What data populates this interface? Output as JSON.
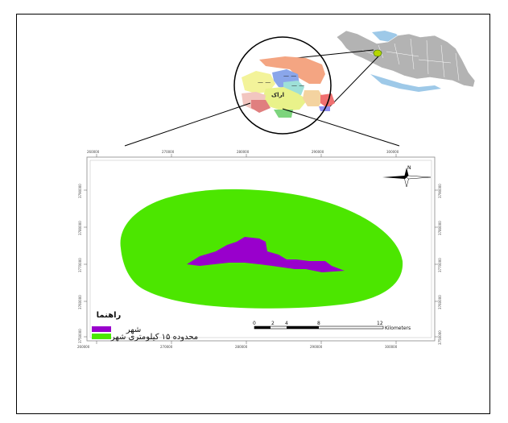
{
  "inset_labels": {
    "center_city": "اراک"
  },
  "main_map": {
    "x_ticks_top": [
      "260000",
      "270000",
      "280000",
      "290000",
      "300000"
    ],
    "x_ticks_bottom": [
      "260000",
      "270000",
      "280000",
      "290000",
      "300000"
    ],
    "y_ticks_left": [
      "3790000",
      "3780000",
      "3770000",
      "3760000",
      "3750000"
    ],
    "y_ticks_right": [
      "3790000",
      "3780000",
      "3770000",
      "3760000",
      "3750000"
    ],
    "north_label": "N",
    "north_icon": "compass-rose-icon"
  },
  "legend": {
    "title": "راهنما",
    "items": [
      {
        "label": "شهر",
        "color": "#9900cc"
      },
      {
        "label": "محدوده ۱۵ کیلومتری شهر",
        "color": "#4ce600"
      }
    ]
  },
  "scale_bar": {
    "ticks": [
      "0",
      "2",
      "4",
      "8",
      "12"
    ],
    "unit": "Kilometers"
  },
  "colors": {
    "buffer_fill": "#4ce600",
    "city_fill": "#9900cc",
    "iran_fill": "#b3b3b3",
    "sea": "#9ec9e8"
  }
}
